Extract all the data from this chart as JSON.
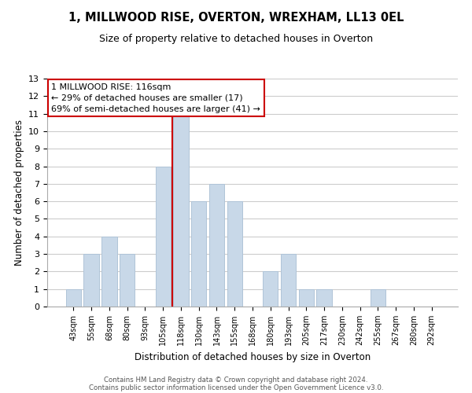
{
  "title": "1, MILLWOOD RISE, OVERTON, WREXHAM, LL13 0EL",
  "subtitle": "Size of property relative to detached houses in Overton",
  "xlabel": "Distribution of detached houses by size in Overton",
  "ylabel": "Number of detached properties",
  "bar_labels": [
    "43sqm",
    "55sqm",
    "68sqm",
    "80sqm",
    "93sqm",
    "105sqm",
    "118sqm",
    "130sqm",
    "143sqm",
    "155sqm",
    "168sqm",
    "180sqm",
    "193sqm",
    "205sqm",
    "217sqm",
    "230sqm",
    "242sqm",
    "255sqm",
    "267sqm",
    "280sqm",
    "292sqm"
  ],
  "bar_values": [
    1,
    3,
    4,
    3,
    0,
    8,
    11,
    6,
    7,
    6,
    0,
    2,
    3,
    1,
    1,
    0,
    0,
    1,
    0,
    0,
    0
  ],
  "bar_color": "#c8d8e8",
  "bar_edge_color": "#b0c4d8",
  "highlight_bar_index": 6,
  "highlight_line_color": "#cc0000",
  "ylim": [
    0,
    13
  ],
  "yticks": [
    0,
    1,
    2,
    3,
    4,
    5,
    6,
    7,
    8,
    9,
    10,
    11,
    12,
    13
  ],
  "annotation_title": "1 MILLWOOD RISE: 116sqm",
  "annotation_line1": "← 29% of detached houses are smaller (17)",
  "annotation_line2": "69% of semi-detached houses are larger (41) →",
  "annotation_box_color": "#ffffff",
  "annotation_box_edge": "#cc0000",
  "footer_line1": "Contains HM Land Registry data © Crown copyright and database right 2024.",
  "footer_line2": "Contains public sector information licensed under the Open Government Licence v3.0.",
  "grid_color": "#cccccc",
  "background_color": "#ffffff",
  "plot_background": "#ffffff"
}
